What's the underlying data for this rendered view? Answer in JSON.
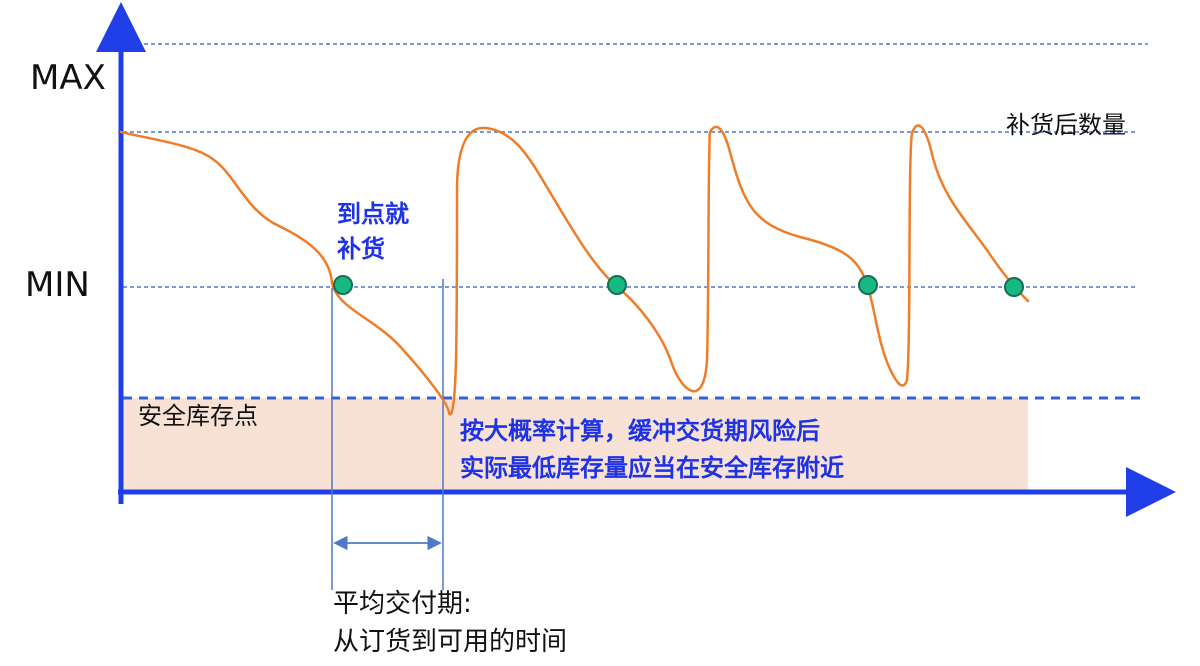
{
  "diagram": {
    "labels": {
      "max": "MAX",
      "min": "MIN",
      "replenished_quantity": "补货后数量",
      "reorder_point_line1": "到点就",
      "reorder_point_line2": "补货",
      "safety_stock_point": "安全库存点",
      "probability_note_line1": "按大概率计算，缓冲交货期风险后",
      "probability_note_line2": "实际最低库存量应当在安全库存附近",
      "lead_time_line1": "平均交付期:",
      "lead_time_line2": "从订货到可用的时间"
    },
    "colors": {
      "axis": "#1f3ee8",
      "reference_line": "#4e79c7",
      "curve": "#ef7d28",
      "reorder_marker": "#16b981",
      "reorder_marker_outline": "#1a6d55",
      "safety_band": "#f8e2d6",
      "blue_text": "#1f33e6",
      "black_text": "#111111"
    }
  }
}
